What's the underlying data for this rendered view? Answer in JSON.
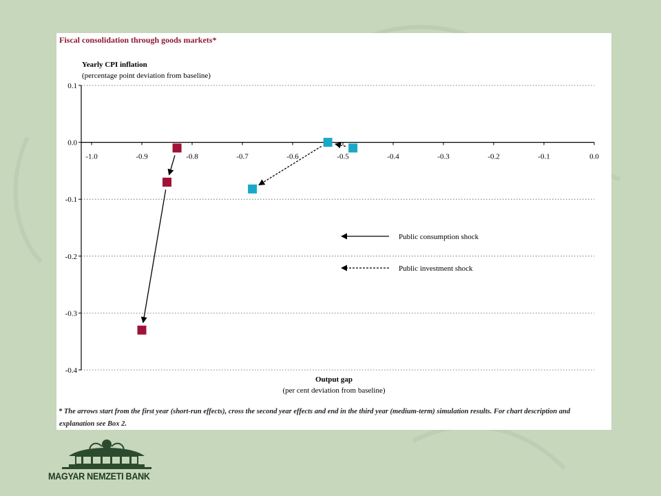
{
  "chart_data": {
    "type": "scatter",
    "title": "Fiscal consolidation through goods markets*",
    "ylabel": "Yearly CPI inflation",
    "ylabel_sub": "(percentage point deviation from baseline)",
    "xlabel": "Output gap",
    "xlabel_sub": "(per cent deviation from baseline)",
    "xlim": [
      -1.0,
      0.0
    ],
    "ylim": [
      -0.4,
      0.1
    ],
    "x_ticks": [
      "-1.0",
      "-0.9",
      "-0.8",
      "-0.7",
      "-0.6",
      "-0.5",
      "-0.4",
      "-0.3",
      "-0.2",
      "-0.1",
      "0.0"
    ],
    "y_ticks": [
      "0.1",
      "0.0",
      "-0.1",
      "-0.2",
      "-0.3",
      "-0.4"
    ],
    "grid": "horizontal-dotted",
    "legend_position": "right-middle",
    "series": [
      {
        "name": "Public consumption shock",
        "color": "#a01238",
        "arrow_style": "solid",
        "points": [
          {
            "x": -0.83,
            "y": -0.01
          },
          {
            "x": -0.85,
            "y": -0.07
          },
          {
            "x": -0.9,
            "y": -0.33
          }
        ]
      },
      {
        "name": "Public investment shock",
        "color": "#1aa8c8",
        "arrow_style": "dashed",
        "points": [
          {
            "x": -0.48,
            "y": -0.01
          },
          {
            "x": -0.53,
            "y": 0.0
          },
          {
            "x": -0.68,
            "y": -0.082
          }
        ]
      }
    ]
  },
  "footnote": "* The arrows start from the first year (short-run effects), cross the second year effects and end in the third year (medium-term) simulation results. For chart description and explanation see Box 2.",
  "logo": {
    "text": "MAGYAR NEMZETI BANK"
  },
  "colors": {
    "background": "#c6d7bc",
    "panel": "#ffffff",
    "title": "#8c1a36"
  }
}
